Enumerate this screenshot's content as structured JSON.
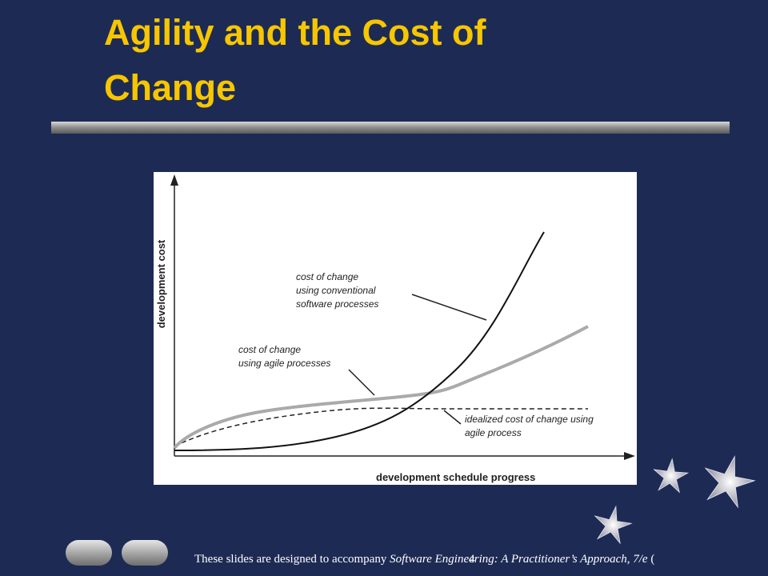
{
  "slide": {
    "title": "Agility and the Cost of Change",
    "footer": {
      "prefix": "These slides are designed to accompany ",
      "book": "Software Engineering: A Practitioner’s Approach, 7/e",
      "suffix": " (",
      "page": "4"
    }
  },
  "diagram": {
    "y_axis_label": "development cost",
    "x_axis_label": "development schedule progress",
    "annotations": [
      {
        "lines": [
          "cost of change",
          "using conventional",
          "software processes"
        ]
      },
      {
        "lines": [
          "cost of change",
          "using agile processes"
        ]
      },
      {
        "lines": [
          "idealized cost of change using",
          "agile process"
        ]
      }
    ]
  }
}
